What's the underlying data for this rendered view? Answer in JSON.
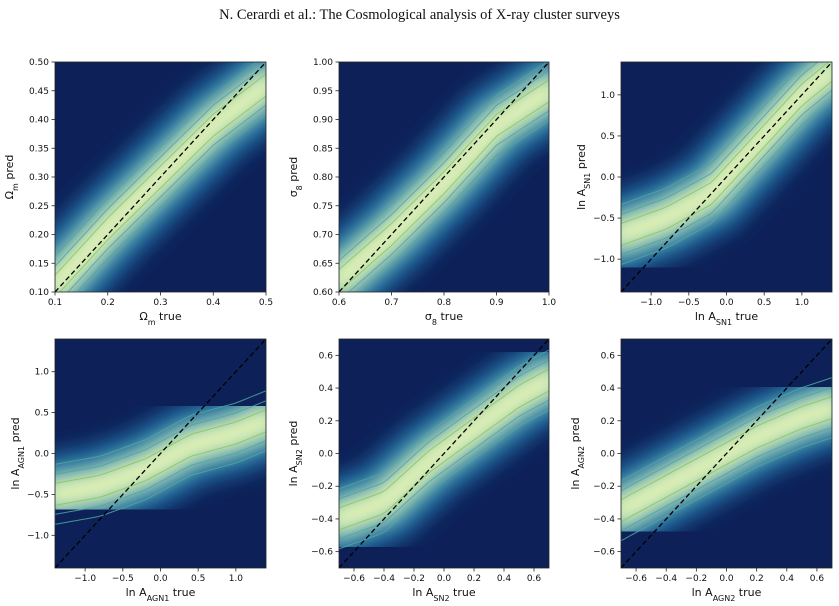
{
  "header": "N. Cerardi  et al.: The Cosmological analysis of X-ray cluster surveys",
  "colors": {
    "background_low": "#0d2158",
    "density_mid": "#2f9bb9",
    "density_high": "#f3f9b6",
    "contour": "#86c95b",
    "diagonal": "#000000"
  },
  "chart_data": [
    {
      "type": "heatmap",
      "xlabel": "Ω_m true",
      "ylabel": "Ω_m pred",
      "xlim": [
        0.1,
        0.5
      ],
      "ylim": [
        0.1,
        0.5
      ],
      "xticks": [
        "0.1",
        "0.2",
        "0.3",
        "0.4",
        "0.5"
      ],
      "xtick_values": [
        0.1,
        0.2,
        0.3,
        0.4,
        0.5
      ],
      "yticks": [
        "0.10",
        "0.15",
        "0.20",
        "0.25",
        "0.30",
        "0.35",
        "0.40",
        "0.45",
        "0.50"
      ],
      "ytick_values": [
        0.1,
        0.15,
        0.2,
        0.25,
        0.3,
        0.35,
        0.4,
        0.45,
        0.5
      ],
      "reference_line": "y = x",
      "ridge": [
        [
          0.1,
          0.11
        ],
        [
          0.2,
          0.21
        ],
        [
          0.3,
          0.3
        ],
        [
          0.4,
          0.39
        ],
        [
          0.5,
          0.46
        ]
      ]
    },
    {
      "type": "heatmap",
      "xlabel": "σ_8 true",
      "ylabel": "σ_8 pred",
      "xlim": [
        0.6,
        1.0
      ],
      "ylim": [
        0.6,
        1.0
      ],
      "xticks": [
        "0.6",
        "0.7",
        "0.8",
        "0.9",
        "1.0"
      ],
      "xtick_values": [
        0.6,
        0.7,
        0.8,
        0.9,
        1.0
      ],
      "yticks": [
        "0.60",
        "0.65",
        "0.70",
        "0.75",
        "0.80",
        "0.85",
        "0.90",
        "0.95",
        "1.00"
      ],
      "ytick_values": [
        0.6,
        0.65,
        0.7,
        0.75,
        0.8,
        0.85,
        0.9,
        0.95,
        1.0
      ],
      "reference_line": "y = x",
      "ridge": [
        [
          0.6,
          0.62
        ],
        [
          0.7,
          0.7
        ],
        [
          0.8,
          0.79
        ],
        [
          0.9,
          0.89
        ],
        [
          1.0,
          0.95
        ]
      ]
    },
    {
      "type": "heatmap",
      "xlabel": "ln A_SN1 true",
      "ylabel": "ln A_SN1 pred",
      "xlim": [
        -1.4,
        1.4
      ],
      "ylim": [
        -1.4,
        1.4
      ],
      "xticks": [
        "−1.0",
        "−0.5",
        "0.0",
        "0.5",
        "1.0"
      ],
      "xtick_values": [
        -1.0,
        -0.5,
        0.0,
        0.5,
        1.0
      ],
      "yticks": [
        "−1.0",
        "−0.5",
        "0.0",
        "0.5",
        "1.0"
      ],
      "ytick_values": [
        -1.0,
        -0.5,
        0.0,
        0.5,
        1.0
      ],
      "reference_line": "y = x",
      "ridge": [
        [
          -1.4,
          -0.7
        ],
        [
          -0.8,
          -0.5
        ],
        [
          -0.2,
          -0.2
        ],
        [
          0.4,
          0.4
        ],
        [
          1.0,
          1.0
        ],
        [
          1.4,
          1.3
        ]
      ]
    },
    {
      "type": "heatmap",
      "xlabel": "ln A_AGN1 true",
      "ylabel": "ln A_AGN1 pred",
      "xlim": [
        -1.4,
        1.4
      ],
      "ylim": [
        -1.4,
        1.4
      ],
      "xticks": [
        "−1.0",
        "−0.5",
        "0.0",
        "0.5",
        "1.0"
      ],
      "xtick_values": [
        -1.0,
        -0.5,
        0.0,
        0.5,
        1.0
      ],
      "yticks": [
        "−1.0",
        "−0.5",
        "0.0",
        "0.5",
        "1.0"
      ],
      "ytick_values": [
        -1.0,
        -0.5,
        0.0,
        0.5,
        1.0
      ],
      "reference_line": "y = x",
      "ridge": [
        [
          -1.4,
          -0.5
        ],
        [
          -0.8,
          -0.4
        ],
        [
          -0.2,
          -0.2
        ],
        [
          0.4,
          0.1
        ],
        [
          1.0,
          0.25
        ],
        [
          1.4,
          0.4
        ]
      ]
    },
    {
      "type": "heatmap",
      "xlabel": "ln A_SN2 true",
      "ylabel": "ln A_SN2 pred",
      "xlim": [
        -0.7,
        0.7
      ],
      "ylim": [
        -0.7,
        0.7
      ],
      "xticks": [
        "−0.6",
        "−0.4",
        "−0.2",
        "0.0",
        "0.2",
        "0.4",
        "0.6"
      ],
      "xtick_values": [
        -0.6,
        -0.4,
        -0.2,
        0.0,
        0.2,
        0.4,
        0.6
      ],
      "yticks": [
        "−0.6",
        "−0.4",
        "−0.2",
        "0.0",
        "0.2",
        "0.4",
        "0.6"
      ],
      "ytick_values": [
        -0.6,
        -0.4,
        -0.2,
        0.0,
        0.2,
        0.4,
        0.6
      ],
      "reference_line": "y = x",
      "ridge": [
        [
          -0.7,
          -0.4
        ],
        [
          -0.4,
          -0.3
        ],
        [
          -0.1,
          -0.05
        ],
        [
          0.2,
          0.15
        ],
        [
          0.5,
          0.35
        ],
        [
          0.7,
          0.45
        ]
      ]
    },
    {
      "type": "heatmap",
      "xlabel": "ln A_AGN2 true",
      "ylabel": "ln A_AGN2 pred",
      "xlim": [
        -0.7,
        0.7
      ],
      "ylim": [
        -0.7,
        0.7
      ],
      "xticks": [
        "−0.6",
        "−0.4",
        "−0.2",
        "0.0",
        "0.2",
        "0.4",
        "0.6"
      ],
      "xtick_values": [
        -0.6,
        -0.4,
        -0.2,
        0.0,
        0.2,
        0.4,
        0.6
      ],
      "yticks": [
        "−0.6",
        "−0.4",
        "−0.2",
        "0.0",
        "0.2",
        "0.4",
        "0.6"
      ],
      "ytick_values": [
        -0.6,
        -0.4,
        -0.2,
        0.0,
        0.2,
        0.4,
        0.6
      ],
      "reference_line": "y = x",
      "ridge": [
        [
          -0.7,
          -0.35
        ],
        [
          -0.4,
          -0.2
        ],
        [
          -0.1,
          -0.05
        ],
        [
          0.2,
          0.1
        ],
        [
          0.5,
          0.22
        ],
        [
          0.7,
          0.28
        ]
      ]
    }
  ]
}
